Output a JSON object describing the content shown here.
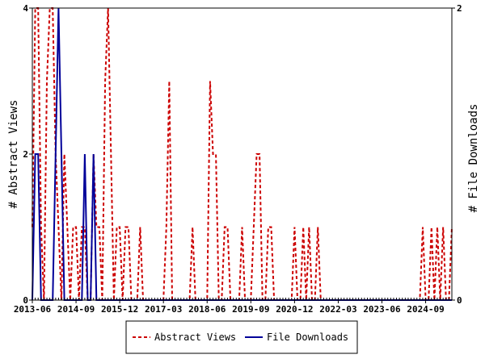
{
  "chart_data": {
    "type": "line",
    "ylabel_left": "# Abstract Views",
    "ylabel_right": "# File Downloads",
    "ylim_left": [
      0,
      4
    ],
    "ylim_right": [
      0,
      2
    ],
    "y_ticks_left": [
      "0",
      "2",
      "4"
    ],
    "y_ticks_right": [
      "0",
      "2"
    ],
    "x_tick_labels": [
      "2013-06",
      "2014-09",
      "2015-12",
      "2017-03",
      "2018-06",
      "2019-09",
      "2020-12",
      "2022-03",
      "2023-06",
      "2024-09"
    ],
    "x_tick_months": [
      "2013-06",
      "2014-09",
      "2015-12",
      "2017-03",
      "2018-06",
      "2019-09",
      "2020-12",
      "2022-03",
      "2023-06",
      "2024-09"
    ],
    "x_range": [
      "2013-06",
      "2025-06"
    ],
    "grid": false,
    "legend_position": "bottom-center",
    "colors": {
      "abstract_views": "#cc0000",
      "file_downloads": "#000099"
    },
    "series": [
      {
        "name": "Abstract Views",
        "axis": "left",
        "style": "dashed",
        "x": [
          "2013-06",
          "2013-07",
          "2013-08",
          "2013-09",
          "2013-10",
          "2013-11",
          "2013-12",
          "2014-01",
          "2014-02",
          "2014-03",
          "2014-04",
          "2014-05",
          "2014-06",
          "2014-07",
          "2014-08",
          "2014-09",
          "2014-10",
          "2014-11",
          "2014-12",
          "2015-01",
          "2015-02",
          "2015-03",
          "2015-04",
          "2015-05",
          "2015-06",
          "2015-07",
          "2015-08",
          "2015-09",
          "2015-10",
          "2015-11",
          "2015-12",
          "2016-01",
          "2016-02",
          "2016-03",
          "2016-04",
          "2016-05",
          "2016-06",
          "2016-07",
          "2016-08",
          "2016-09",
          "2016-10",
          "2016-11",
          "2016-12",
          "2017-01",
          "2017-02",
          "2017-03",
          "2017-04",
          "2017-05",
          "2017-06",
          "2017-07",
          "2017-08",
          "2017-09",
          "2017-10",
          "2017-11",
          "2017-12",
          "2018-01",
          "2018-02",
          "2018-03",
          "2018-04",
          "2018-05",
          "2018-06",
          "2018-07",
          "2018-08",
          "2018-09",
          "2018-10",
          "2018-11",
          "2018-12",
          "2019-01",
          "2019-02",
          "2019-03",
          "2019-04",
          "2019-05",
          "2019-06",
          "2019-07",
          "2019-08",
          "2019-09",
          "2019-10",
          "2019-11",
          "2019-12",
          "2020-01",
          "2020-02",
          "2020-03",
          "2020-04",
          "2020-05",
          "2020-06",
          "2020-07",
          "2020-08",
          "2020-09",
          "2020-10",
          "2020-11",
          "2020-12",
          "2021-01",
          "2021-02",
          "2021-03",
          "2021-04",
          "2021-05",
          "2021-06",
          "2021-07",
          "2021-08",
          "2021-09",
          "2021-10",
          "2021-11",
          "2021-12",
          "2022-01",
          "2022-02",
          "2022-03",
          "2022-04",
          "2022-05",
          "2022-06",
          "2022-07",
          "2022-08",
          "2022-09",
          "2022-10",
          "2022-11",
          "2022-12",
          "2023-01",
          "2023-02",
          "2023-03",
          "2023-04",
          "2023-05",
          "2023-06",
          "2023-07",
          "2023-08",
          "2023-09",
          "2023-10",
          "2023-11",
          "2023-12",
          "2024-01",
          "2024-02",
          "2024-03",
          "2024-04",
          "2024-05",
          "2024-06",
          "2024-07",
          "2024-08",
          "2024-09",
          "2024-10",
          "2024-11",
          "2024-12",
          "2025-01",
          "2025-02",
          "2025-03",
          "2025-04",
          "2025-05",
          "2025-06"
        ],
        "values": [
          1,
          4,
          4,
          1,
          0,
          3,
          4,
          4,
          2,
          1,
          0,
          2,
          1,
          0,
          1,
          1,
          0,
          1,
          1,
          0,
          0,
          2,
          1,
          1,
          0,
          3,
          4,
          2,
          0,
          1,
          1,
          0,
          1,
          1,
          0,
          0,
          0,
          1,
          0,
          0,
          0,
          0,
          0,
          0,
          0,
          0,
          1,
          3,
          0,
          0,
          0,
          0,
          0,
          0,
          0,
          1,
          0,
          0,
          0,
          0,
          0,
          3,
          2,
          2,
          0,
          0,
          1,
          1,
          0,
          0,
          0,
          0,
          1,
          0,
          0,
          0,
          1,
          2,
          2,
          0,
          0,
          1,
          1,
          0,
          0,
          0,
          0,
          0,
          0,
          0,
          1,
          0,
          0,
          1,
          0,
          1,
          0,
          0,
          1,
          0,
          0,
          0,
          0,
          0,
          0,
          0,
          0,
          0,
          0,
          0,
          0,
          0,
          0,
          0,
          0,
          0,
          0,
          0,
          0,
          0,
          0,
          0,
          0,
          0,
          0,
          0,
          0,
          0,
          0,
          0,
          0,
          0,
          0,
          0,
          1,
          0,
          0,
          1,
          0,
          1,
          0,
          1,
          0,
          0,
          1
        ]
      },
      {
        "name": "File Downloads",
        "axis": "right",
        "style": "solid",
        "x": [
          "2013-06",
          "2013-07",
          "2013-08",
          "2013-09",
          "2013-10",
          "2013-11",
          "2013-12",
          "2014-01",
          "2014-02",
          "2014-03",
          "2014-04",
          "2014-05",
          "2014-06",
          "2014-07",
          "2014-08",
          "2014-09",
          "2014-10",
          "2014-11",
          "2014-12",
          "2015-01",
          "2015-02",
          "2015-03",
          "2015-04",
          "2015-05",
          "2015-06",
          "2015-07",
          "2015-08",
          "2015-09",
          "2015-10",
          "2015-11",
          "2015-12",
          "2016-01",
          "2016-02",
          "2016-03",
          "2016-04",
          "2016-05",
          "2016-06",
          "2016-07",
          "2016-08",
          "2016-09",
          "2016-10",
          "2016-11",
          "2016-12",
          "2017-01",
          "2017-02",
          "2017-03",
          "2017-04",
          "2017-05",
          "2017-06",
          "2017-07",
          "2017-08",
          "2017-09",
          "2017-10",
          "2017-11",
          "2017-12",
          "2018-01",
          "2018-02",
          "2018-03",
          "2018-04",
          "2018-05",
          "2018-06",
          "2018-07",
          "2018-08",
          "2018-09",
          "2018-10",
          "2018-11",
          "2018-12",
          "2019-01",
          "2019-02",
          "2019-03",
          "2019-04",
          "2019-05",
          "2019-06",
          "2019-07",
          "2019-08",
          "2019-09",
          "2019-10",
          "2019-11",
          "2019-12",
          "2020-01",
          "2020-02",
          "2020-03",
          "2020-04",
          "2020-05",
          "2020-06",
          "2020-07",
          "2020-08",
          "2020-09",
          "2020-10",
          "2020-11",
          "2020-12",
          "2021-01",
          "2021-02",
          "2021-03",
          "2021-04",
          "2021-05",
          "2021-06",
          "2021-07",
          "2021-08",
          "2021-09",
          "2021-10",
          "2021-11",
          "2021-12",
          "2022-01",
          "2022-02",
          "2022-03",
          "2022-04",
          "2022-05",
          "2022-06",
          "2022-07",
          "2022-08",
          "2022-09",
          "2022-10",
          "2022-11",
          "2022-12",
          "2023-01",
          "2023-02",
          "2023-03",
          "2023-04",
          "2023-05",
          "2023-06",
          "2023-07",
          "2023-08",
          "2023-09",
          "2023-10",
          "2023-11",
          "2023-12",
          "2024-01",
          "2024-02",
          "2024-03",
          "2024-04",
          "2024-05",
          "2024-06",
          "2024-07",
          "2024-08",
          "2024-09",
          "2024-10",
          "2024-11",
          "2024-12",
          "2025-01",
          "2025-02",
          "2025-03",
          "2025-04",
          "2025-05",
          "2025-06"
        ],
        "values": [
          0,
          1,
          1,
          0,
          0,
          0,
          0,
          0,
          1,
          2,
          1,
          0,
          0,
          0,
          0,
          0,
          0,
          0,
          1,
          0,
          0,
          1,
          0,
          0,
          0,
          0,
          0,
          0,
          0,
          0,
          0,
          0,
          0,
          0,
          0,
          0,
          0,
          0,
          0,
          0,
          0,
          0,
          0,
          0,
          0,
          0,
          0,
          0,
          0,
          0,
          0,
          0,
          0,
          0,
          0,
          0,
          0,
          0,
          0,
          0,
          0,
          0,
          0,
          0,
          0,
          0,
          0,
          0,
          0,
          0,
          0,
          0,
          0,
          0,
          0,
          0,
          0,
          0,
          0,
          0,
          0,
          0,
          0,
          0,
          0,
          0,
          0,
          0,
          0,
          0,
          0,
          0,
          0,
          0,
          0,
          0,
          0,
          0,
          0,
          0,
          0,
          0,
          0,
          0,
          0,
          0,
          0,
          0,
          0,
          0,
          0,
          0,
          0,
          0,
          0,
          0,
          0,
          0,
          0,
          0,
          0,
          0,
          0,
          0,
          0,
          0,
          0,
          0,
          0,
          0,
          0,
          0,
          0,
          0,
          0,
          0,
          0,
          0,
          0,
          0,
          0,
          0,
          0,
          0,
          0
        ]
      }
    ]
  }
}
